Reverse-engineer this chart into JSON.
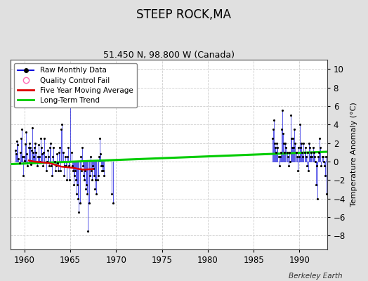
{
  "title": "STEEP ROCK,MA",
  "subtitle": "51.450 N, 98.800 W (Canada)",
  "ylabel": "Temperature Anomaly (°C)",
  "credit": "Berkeley Earth",
  "xlim": [
    1958.5,
    1993.0
  ],
  "ylim": [
    -9.5,
    11.0
  ],
  "yticks": [
    -8,
    -6,
    -4,
    -2,
    0,
    2,
    4,
    6,
    8,
    10
  ],
  "xticks": [
    1960,
    1965,
    1970,
    1975,
    1980,
    1985,
    1990
  ],
  "fig_bg_color": "#e0e0e0",
  "plot_bg_color": "#ffffff",
  "raw_color": "#0000dd",
  "raw_alpha": 0.65,
  "marker_color": "#000000",
  "ma_color": "#dd0000",
  "trend_color": "#00cc00",
  "grid_color": "#cccccc",
  "raw_data": [
    [
      1959.042,
      1.2
    ],
    [
      1959.125,
      0.8
    ],
    [
      1959.208,
      2.2
    ],
    [
      1959.292,
      1.8
    ],
    [
      1959.375,
      0.3
    ],
    [
      1959.458,
      -0.2
    ],
    [
      1959.542,
      1.0
    ],
    [
      1959.625,
      2.5
    ],
    [
      1959.708,
      3.5
    ],
    [
      1959.792,
      0.5
    ],
    [
      1959.875,
      -1.5
    ],
    [
      1959.958,
      0.5
    ],
    [
      1960.042,
      0.1
    ],
    [
      1960.125,
      1.9
    ],
    [
      1960.208,
      3.2
    ],
    [
      1960.292,
      0.8
    ],
    [
      1960.375,
      -0.5
    ],
    [
      1960.458,
      1.5
    ],
    [
      1960.542,
      2.0
    ],
    [
      1960.625,
      1.5
    ],
    [
      1960.708,
      -0.3
    ],
    [
      1960.792,
      1.2
    ],
    [
      1960.875,
      3.6
    ],
    [
      1960.958,
      1.0
    ],
    [
      1961.042,
      0.5
    ],
    [
      1961.125,
      1.5
    ],
    [
      1961.208,
      2.0
    ],
    [
      1961.292,
      1.0
    ],
    [
      1961.375,
      -0.5
    ],
    [
      1961.458,
      0.5
    ],
    [
      1961.542,
      1.8
    ],
    [
      1961.625,
      0.5
    ],
    [
      1961.708,
      0.0
    ],
    [
      1961.792,
      2.5
    ],
    [
      1961.875,
      1.5
    ],
    [
      1961.958,
      0.8
    ],
    [
      1962.042,
      -0.5
    ],
    [
      1962.125,
      1.0
    ],
    [
      1962.208,
      2.5
    ],
    [
      1962.292,
      0.5
    ],
    [
      1962.375,
      -1.0
    ],
    [
      1962.458,
      0.0
    ],
    [
      1962.542,
      1.2
    ],
    [
      1962.625,
      0.5
    ],
    [
      1962.708,
      -0.5
    ],
    [
      1962.792,
      1.5
    ],
    [
      1962.875,
      2.0
    ],
    [
      1962.958,
      -0.5
    ],
    [
      1963.042,
      -1.5
    ],
    [
      1963.125,
      0.5
    ],
    [
      1963.208,
      1.5
    ],
    [
      1963.292,
      0.0
    ],
    [
      1963.375,
      -1.0
    ],
    [
      1963.458,
      -0.5
    ],
    [
      1963.542,
      0.8
    ],
    [
      1963.625,
      -0.2
    ],
    [
      1963.708,
      -1.0
    ],
    [
      1963.792,
      1.0
    ],
    [
      1963.875,
      1.5
    ],
    [
      1963.958,
      -1.0
    ],
    [
      1964.042,
      3.5
    ],
    [
      1964.125,
      4.0
    ],
    [
      1964.208,
      1.0
    ],
    [
      1964.292,
      -1.5
    ],
    [
      1964.375,
      -0.5
    ],
    [
      1964.458,
      0.5
    ],
    [
      1964.542,
      -0.5
    ],
    [
      1964.625,
      -2.0
    ],
    [
      1964.708,
      0.5
    ],
    [
      1964.792,
      1.5
    ],
    [
      1964.875,
      -0.5
    ],
    [
      1964.958,
      -2.0
    ],
    [
      1965.042,
      7.0
    ],
    [
      1965.125,
      1.0
    ],
    [
      1965.208,
      -0.5
    ],
    [
      1965.292,
      -1.0
    ],
    [
      1965.375,
      -2.5
    ],
    [
      1965.458,
      -1.5
    ],
    [
      1965.542,
      -1.0
    ],
    [
      1965.625,
      -2.0
    ],
    [
      1965.708,
      -3.5
    ],
    [
      1965.792,
      -2.5
    ],
    [
      1965.875,
      -4.0
    ],
    [
      1965.958,
      -5.5
    ],
    [
      1966.042,
      -4.5
    ],
    [
      1966.125,
      0.5
    ],
    [
      1966.208,
      -1.0
    ],
    [
      1966.292,
      1.5
    ],
    [
      1966.375,
      -0.5
    ],
    [
      1966.458,
      -1.5
    ],
    [
      1966.542,
      -2.0
    ],
    [
      1966.625,
      -1.0
    ],
    [
      1966.708,
      -3.0
    ],
    [
      1966.792,
      -2.5
    ],
    [
      1966.875,
      -3.5
    ],
    [
      1966.958,
      -7.5
    ],
    [
      1967.042,
      -4.5
    ],
    [
      1967.125,
      -1.5
    ],
    [
      1967.208,
      0.5
    ],
    [
      1967.292,
      -1.0
    ],
    [
      1967.375,
      -2.0
    ],
    [
      1967.458,
      -0.5
    ],
    [
      1967.542,
      -0.8
    ],
    [
      1967.625,
      -1.5
    ],
    [
      1967.708,
      -3.0
    ],
    [
      1967.792,
      -2.0
    ],
    [
      1967.875,
      -3.5
    ],
    [
      1967.958,
      -2.0
    ],
    [
      1968.042,
      -1.5
    ],
    [
      1968.125,
      0.5
    ],
    [
      1968.208,
      2.5
    ],
    [
      1968.292,
      0.8
    ],
    [
      1968.375,
      -0.5
    ],
    [
      1968.458,
      -1.0
    ],
    [
      1968.542,
      -0.5
    ],
    [
      1968.625,
      -1.0
    ],
    [
      1968.708,
      -1.5
    ],
    [
      1969.542,
      -3.5
    ],
    [
      1969.708,
      -4.5
    ],
    [
      1987.042,
      2.5
    ],
    [
      1987.125,
      3.5
    ],
    [
      1987.208,
      4.5
    ],
    [
      1987.292,
      2.0
    ],
    [
      1987.375,
      1.5
    ],
    [
      1987.458,
      1.0
    ],
    [
      1987.542,
      2.0
    ],
    [
      1987.625,
      1.5
    ],
    [
      1987.708,
      0.5
    ],
    [
      1987.792,
      -0.5
    ],
    [
      1987.875,
      0.5
    ],
    [
      1987.958,
      1.0
    ],
    [
      1988.042,
      3.5
    ],
    [
      1988.125,
      5.5
    ],
    [
      1988.208,
      3.0
    ],
    [
      1988.292,
      2.0
    ],
    [
      1988.375,
      1.0
    ],
    [
      1988.458,
      2.0
    ],
    [
      1988.542,
      1.5
    ],
    [
      1988.625,
      1.0
    ],
    [
      1988.708,
      0.5
    ],
    [
      1988.792,
      -0.5
    ],
    [
      1988.875,
      1.0
    ],
    [
      1988.958,
      0.0
    ],
    [
      1989.042,
      5.0
    ],
    [
      1989.125,
      2.5
    ],
    [
      1989.208,
      1.5
    ],
    [
      1989.292,
      2.5
    ],
    [
      1989.375,
      1.5
    ],
    [
      1989.458,
      3.5
    ],
    [
      1989.542,
      2.0
    ],
    [
      1989.625,
      1.0
    ],
    [
      1989.708,
      0.5
    ],
    [
      1989.792,
      -1.0
    ],
    [
      1989.875,
      1.5
    ],
    [
      1989.958,
      0.5
    ],
    [
      1990.042,
      4.0
    ],
    [
      1990.125,
      1.5
    ],
    [
      1990.208,
      2.0
    ],
    [
      1990.292,
      1.0
    ],
    [
      1990.375,
      0.5
    ],
    [
      1990.458,
      2.0
    ],
    [
      1990.542,
      1.0
    ],
    [
      1990.625,
      1.5
    ],
    [
      1990.708,
      0.5
    ],
    [
      1990.792,
      -0.5
    ],
    [
      1990.875,
      1.0
    ],
    [
      1990.958,
      -1.0
    ],
    [
      1991.042,
      2.0
    ],
    [
      1991.125,
      1.5
    ],
    [
      1991.208,
      0.5
    ],
    [
      1991.292,
      1.0
    ],
    [
      1991.375,
      0.5
    ],
    [
      1991.458,
      1.5
    ],
    [
      1991.542,
      1.0
    ],
    [
      1991.625,
      0.5
    ],
    [
      1991.708,
      0.0
    ],
    [
      1991.792,
      -2.5
    ],
    [
      1991.875,
      -0.5
    ],
    [
      1991.958,
      -4.0
    ],
    [
      1992.042,
      0.5
    ],
    [
      1992.125,
      1.0
    ],
    [
      1992.208,
      2.5
    ],
    [
      1992.292,
      1.5
    ],
    [
      1992.375,
      -0.5
    ],
    [
      1992.458,
      0.5
    ],
    [
      1992.542,
      0.5
    ],
    [
      1992.625,
      0.0
    ],
    [
      1992.708,
      -0.5
    ],
    [
      1992.792,
      -1.5
    ],
    [
      1992.875,
      0.5
    ],
    [
      1992.958,
      -3.5
    ]
  ],
  "ma_data": [
    [
      1960.5,
      0.1
    ],
    [
      1961.0,
      0.0
    ],
    [
      1961.5,
      -0.05
    ],
    [
      1962.0,
      -0.1
    ],
    [
      1962.5,
      -0.15
    ],
    [
      1963.0,
      -0.25
    ],
    [
      1963.5,
      -0.4
    ],
    [
      1964.0,
      -0.55
    ],
    [
      1964.5,
      -0.6
    ],
    [
      1965.0,
      -0.65
    ],
    [
      1965.5,
      -0.72
    ],
    [
      1966.0,
      -0.82
    ],
    [
      1966.5,
      -0.88
    ],
    [
      1967.0,
      -0.85
    ],
    [
      1967.5,
      -0.82
    ]
  ],
  "trend_x": [
    1958.5,
    1993.0
  ],
  "trend_y": [
    -0.28,
    1.05
  ]
}
